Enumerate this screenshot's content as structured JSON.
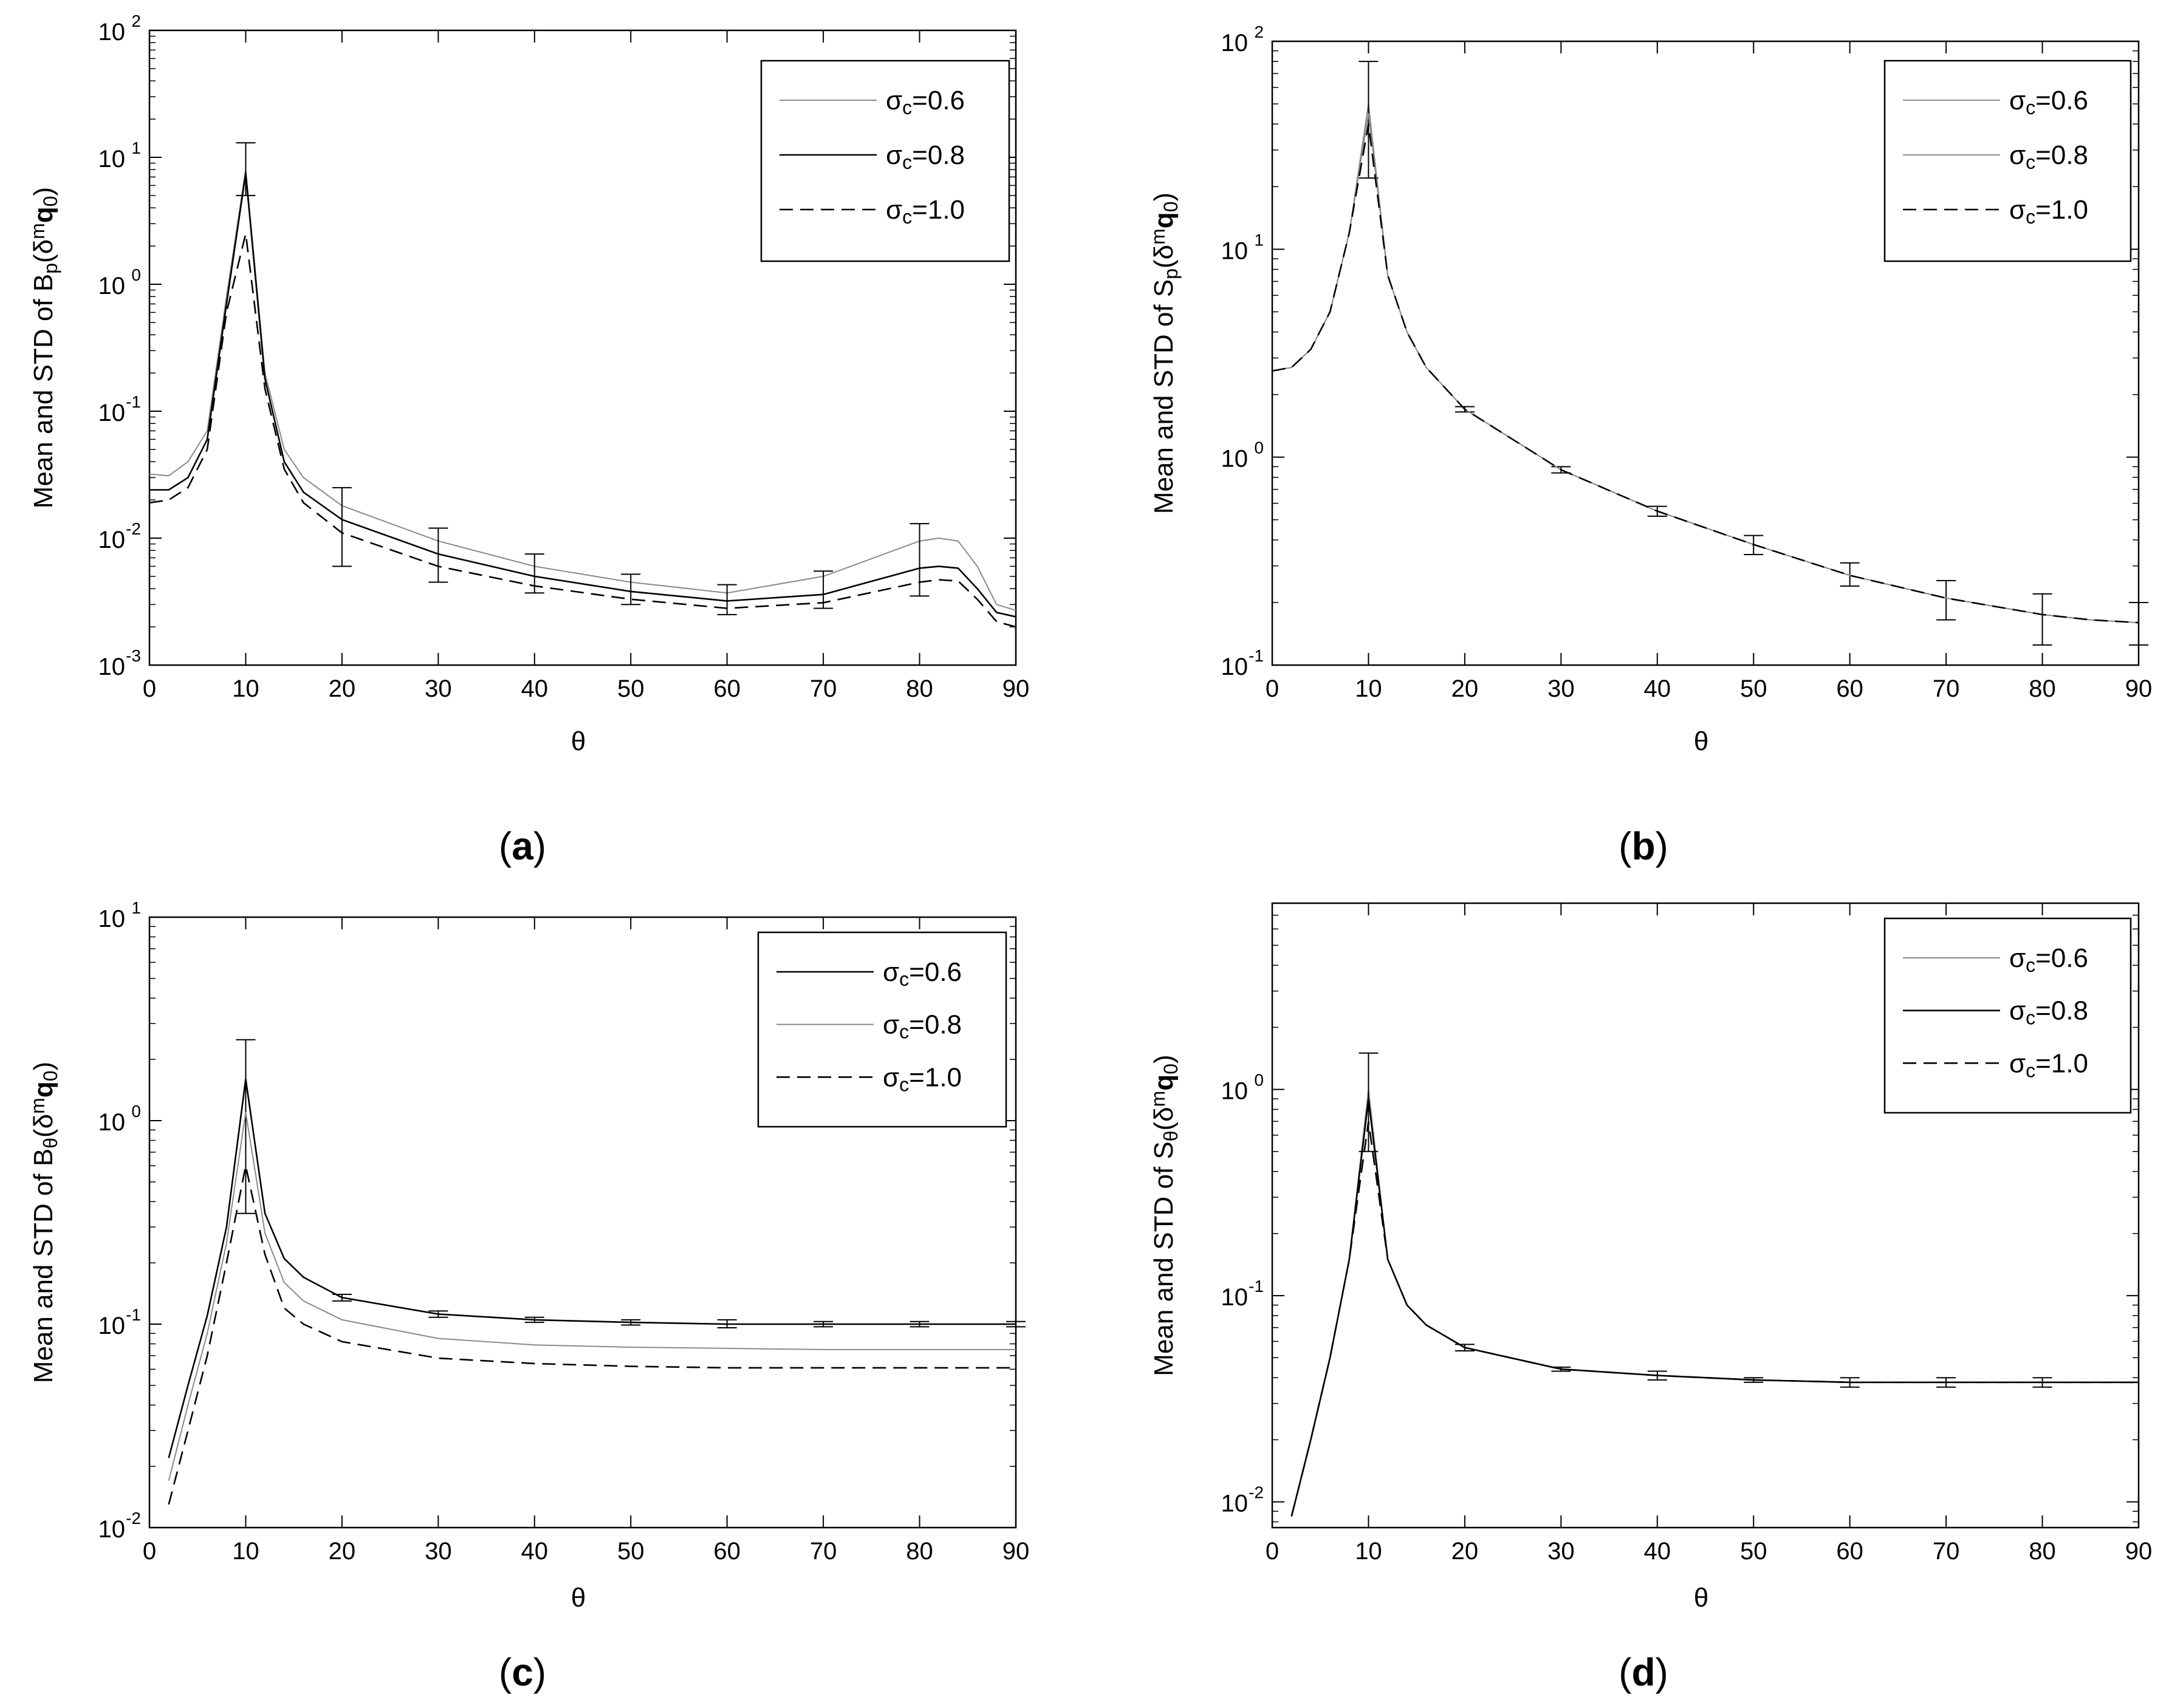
{
  "figure": {
    "captions": [
      "(a)",
      "(b)",
      "(c)",
      "(d)"
    ],
    "caption_letters": [
      "a",
      "b",
      "c",
      "d"
    ],
    "xlabel": "θ"
  },
  "colors": {
    "axis": "#000000",
    "line": "#000000",
    "light": "#8a8a8a",
    "background": "#ffffff"
  },
  "chart_data": [
    {
      "type": "line",
      "panel": "a",
      "title": "",
      "xlabel": "θ",
      "ylabel": "Mean and STD of Bp(δmq0)",
      "ylabel_parts": {
        "pre": "Mean and STD of B",
        "sub": "p",
        "mid": "(δ",
        "sup": "m",
        "bold": "q",
        "sub2": "0",
        "post": ")"
      },
      "yscale": "log",
      "xlim": [
        0,
        90
      ],
      "ylim": [
        0.001,
        100
      ],
      "xticks": [
        0,
        10,
        20,
        30,
        40,
        50,
        60,
        70,
        80,
        90
      ],
      "yticks": [
        {
          "value": 0.001,
          "base": "10",
          "exp": "-3"
        },
        {
          "value": 0.01,
          "base": "10",
          "exp": "-2"
        },
        {
          "value": 0.1,
          "base": "10",
          "exp": "-1"
        },
        {
          "value": 1,
          "base": "10",
          "exp": "0"
        },
        {
          "value": 10,
          "base": "10",
          "exp": "1"
        },
        {
          "value": 100,
          "base": "10",
          "exp": "2"
        }
      ],
      "legend_position": "top-right",
      "series": [
        {
          "name": "σc=0.6",
          "label_main": "σ",
          "label_sub": "c",
          "label_val": "=0.6",
          "style": "solid",
          "weight": "thin",
          "x": [
            0,
            2,
            4,
            6,
            8,
            10,
            12,
            14,
            16,
            20,
            30,
            40,
            50,
            60,
            70,
            80,
            82,
            84,
            86,
            88,
            90
          ],
          "y": [
            0.032,
            0.031,
            0.04,
            0.07,
            0.8,
            8.0,
            0.2,
            0.05,
            0.03,
            0.018,
            0.0095,
            0.006,
            0.0045,
            0.0037,
            0.005,
            0.0095,
            0.01,
            0.0095,
            0.006,
            0.003,
            0.0027
          ],
          "error_x": [
            10,
            20,
            30,
            40,
            50,
            60,
            70,
            80
          ],
          "error_low": [
            5.0,
            0.006,
            0.0045,
            0.0037,
            0.003,
            0.0025,
            0.0028,
            0.0035
          ],
          "error_high": [
            13,
            0.025,
            0.012,
            0.0075,
            0.0052,
            0.0043,
            0.0055,
            0.013
          ]
        },
        {
          "name": "σc=0.8",
          "label_main": "σ",
          "label_sub": "c",
          "label_val": "=0.8",
          "style": "solid",
          "weight": "normal",
          "x": [
            0,
            2,
            4,
            6,
            8,
            10,
            12,
            14,
            16,
            20,
            30,
            40,
            50,
            60,
            70,
            80,
            82,
            84,
            86,
            88,
            90
          ],
          "y": [
            0.024,
            0.024,
            0.03,
            0.06,
            0.7,
            7.5,
            0.18,
            0.04,
            0.023,
            0.014,
            0.0075,
            0.005,
            0.0038,
            0.0032,
            0.0036,
            0.0058,
            0.006,
            0.0058,
            0.004,
            0.0026,
            0.0024
          ]
        },
        {
          "name": "σc=1.0",
          "label_main": "σ",
          "label_sub": "c",
          "label_val": "=1.0",
          "style": "dashed",
          "weight": "normal",
          "x": [
            0,
            2,
            4,
            6,
            8,
            10,
            12,
            14,
            16,
            20,
            30,
            40,
            50,
            60,
            70,
            80,
            82,
            84,
            86,
            88,
            90
          ],
          "y": [
            0.019,
            0.02,
            0.025,
            0.05,
            0.6,
            2.5,
            0.15,
            0.035,
            0.019,
            0.011,
            0.006,
            0.0042,
            0.0033,
            0.0028,
            0.0031,
            0.0045,
            0.0047,
            0.0046,
            0.0033,
            0.0022,
            0.002
          ]
        }
      ]
    },
    {
      "type": "line",
      "panel": "b",
      "title": "",
      "xlabel": "θ",
      "ylabel": "Mean and STD of Sp(δmq0)",
      "ylabel_parts": {
        "pre": "Mean and STD of S",
        "sub": "p",
        "mid": "(δ",
        "sup": "m",
        "bold": "q",
        "sub2": "0",
        "post": ")"
      },
      "yscale": "log",
      "xlim": [
        0,
        90
      ],
      "ylim": [
        0.1,
        100
      ],
      "xticks": [
        0,
        10,
        20,
        30,
        40,
        50,
        60,
        70,
        80,
        90
      ],
      "yticks": [
        {
          "value": 0.1,
          "base": "10",
          "exp": "-1"
        },
        {
          "value": 1,
          "base": "10",
          "exp": "0"
        },
        {
          "value": 10,
          "base": "10",
          "exp": "1"
        },
        {
          "value": 100,
          "base": "10",
          "exp": "2"
        }
      ],
      "legend_position": "top-right",
      "series": [
        {
          "name": "σc=0.6",
          "label_main": "σ",
          "label_sub": "c",
          "label_val": "=0.6",
          "style": "solid",
          "weight": "thin",
          "x": [
            0,
            2,
            4,
            6,
            8,
            10,
            12,
            14,
            16,
            20,
            30,
            40,
            50,
            60,
            70,
            80,
            85,
            90
          ],
          "y": [
            2.6,
            2.7,
            3.3,
            5,
            12,
            50,
            7.5,
            4,
            2.7,
            1.7,
            0.87,
            0.55,
            0.38,
            0.27,
            0.21,
            0.175,
            0.165,
            0.16
          ],
          "error_x": [
            10,
            20,
            30,
            40,
            50,
            60,
            70,
            80,
            90
          ],
          "error_low": [
            22,
            1.65,
            0.84,
            0.52,
            0.34,
            0.24,
            0.165,
            0.125,
            0.125
          ],
          "error_high": [
            80,
            1.75,
            0.9,
            0.58,
            0.42,
            0.31,
            0.255,
            0.22,
            0.2
          ]
        },
        {
          "name": "σc=0.8",
          "label_main": "σ",
          "label_sub": "c",
          "label_val": "=0.8",
          "style": "solid",
          "weight": "thin",
          "x": [
            0,
            2,
            4,
            6,
            8,
            10,
            12,
            14,
            16,
            20,
            30,
            40,
            50,
            60,
            70,
            80,
            85,
            90
          ],
          "y": [
            2.6,
            2.7,
            3.3,
            5,
            12,
            45,
            7.5,
            4,
            2.7,
            1.7,
            0.87,
            0.55,
            0.38,
            0.27,
            0.21,
            0.175,
            0.165,
            0.16
          ]
        },
        {
          "name": "σc=1.0",
          "label_main": "σ",
          "label_sub": "c",
          "label_val": "=1.0",
          "style": "dashed",
          "weight": "normal",
          "x": [
            0,
            2,
            4,
            6,
            8,
            10,
            12,
            14,
            16,
            20,
            30,
            40,
            50,
            60,
            70,
            80,
            85,
            90
          ],
          "y": [
            2.6,
            2.7,
            3.3,
            5,
            12,
            40,
            7.5,
            4,
            2.7,
            1.7,
            0.87,
            0.55,
            0.38,
            0.27,
            0.21,
            0.175,
            0.165,
            0.16
          ]
        }
      ]
    },
    {
      "type": "line",
      "panel": "c",
      "title": "",
      "xlabel": "θ",
      "ylabel": "Mean and STD of Bθ(δmq0)",
      "ylabel_parts": {
        "pre": "Mean and STD of B",
        "sub": "θ",
        "mid": "(δ",
        "sup": "m",
        "bold": "q",
        "sub2": "0",
        "post": ")"
      },
      "yscale": "log",
      "xlim": [
        0,
        90
      ],
      "ylim": [
        0.01,
        10
      ],
      "xticks": [
        0,
        10,
        20,
        30,
        40,
        50,
        60,
        70,
        80,
        90
      ],
      "yticks": [
        {
          "value": 0.01,
          "base": "10",
          "exp": "-2"
        },
        {
          "value": 0.1,
          "base": "10",
          "exp": "-1"
        },
        {
          "value": 1,
          "base": "10",
          "exp": "0"
        },
        {
          "value": 10,
          "base": "10",
          "exp": "1"
        }
      ],
      "legend_position": "top-right",
      "series": [
        {
          "name": "σc=0.6",
          "label_main": "σ",
          "label_sub": "c",
          "label_val": "=0.6",
          "style": "solid",
          "weight": "normal",
          "x": [
            2,
            4,
            6,
            8,
            10,
            12,
            14,
            16,
            20,
            30,
            40,
            50,
            60,
            70,
            80,
            90
          ],
          "y": [
            0.022,
            0.05,
            0.11,
            0.3,
            1.6,
            0.35,
            0.21,
            0.17,
            0.135,
            0.112,
            0.105,
            0.102,
            0.1,
            0.1,
            0.1,
            0.1
          ],
          "error_x": [
            10,
            20,
            30,
            40,
            50,
            60,
            70,
            80,
            90
          ],
          "error_low": [
            0.35,
            0.13,
            0.108,
            0.102,
            0.099,
            0.096,
            0.097,
            0.097,
            0.097
          ],
          "error_high": [
            2.5,
            0.14,
            0.116,
            0.108,
            0.105,
            0.105,
            0.103,
            0.103,
            0.103
          ]
        },
        {
          "name": "σc=0.8",
          "label_main": "σ",
          "label_sub": "c",
          "label_val": "=0.8",
          "style": "solid",
          "weight": "thin",
          "x": [
            2,
            4,
            6,
            8,
            10,
            12,
            14,
            16,
            20,
            30,
            40,
            50,
            60,
            70,
            80,
            90
          ],
          "y": [
            0.017,
            0.04,
            0.09,
            0.25,
            1.1,
            0.28,
            0.16,
            0.13,
            0.105,
            0.085,
            0.079,
            0.077,
            0.076,
            0.075,
            0.075,
            0.075
          ]
        },
        {
          "name": "σc=1.0",
          "label_main": "σ",
          "label_sub": "c",
          "label_val": "=1.0",
          "style": "dashed",
          "weight": "normal",
          "x": [
            2,
            4,
            6,
            8,
            10,
            12,
            14,
            16,
            20,
            30,
            40,
            50,
            60,
            70,
            80,
            90
          ],
          "y": [
            0.013,
            0.03,
            0.07,
            0.2,
            0.6,
            0.22,
            0.12,
            0.1,
            0.082,
            0.068,
            0.064,
            0.062,
            0.061,
            0.061,
            0.061,
            0.061
          ]
        }
      ]
    },
    {
      "type": "line",
      "panel": "d",
      "title": "",
      "xlabel": "θ",
      "ylabel": "Mean and STD of Sθ(δmq0)",
      "ylabel_parts": {
        "pre": "Mean and STD of S",
        "sub": "θ",
        "mid": "(δ",
        "sup": "m",
        "bold": "q",
        "sub2": "0",
        "post": ")"
      },
      "yscale": "log",
      "xlim": [
        0,
        90
      ],
      "ylim": [
        0.0075,
        8
      ],
      "xticks": [
        0,
        10,
        20,
        30,
        40,
        50,
        60,
        70,
        80,
        90
      ],
      "yticks": [
        {
          "value": 0.01,
          "base": "10",
          "exp": "-2"
        },
        {
          "value": 0.1,
          "base": "10",
          "exp": "-1"
        },
        {
          "value": 1,
          "base": "10",
          "exp": "0"
        }
      ],
      "legend_position": "top-right",
      "series": [
        {
          "name": "σc=0.6",
          "label_main": "σ",
          "label_sub": "c",
          "label_val": "=0.6",
          "style": "solid",
          "weight": "thin",
          "x": [
            2,
            4,
            6,
            8,
            10,
            12,
            14,
            16,
            20,
            30,
            40,
            50,
            60,
            70,
            80,
            90
          ],
          "y": [
            0.0085,
            0.02,
            0.05,
            0.15,
            1.0,
            0.15,
            0.09,
            0.072,
            0.056,
            0.044,
            0.041,
            0.039,
            0.038,
            0.038,
            0.038,
            0.038
          ],
          "error_x": [
            10,
            20,
            30,
            40,
            50,
            60,
            70,
            80
          ],
          "error_low": [
            0.5,
            0.054,
            0.043,
            0.039,
            0.038,
            0.036,
            0.036,
            0.036
          ],
          "error_high": [
            1.5,
            0.058,
            0.045,
            0.043,
            0.04,
            0.04,
            0.04,
            0.04
          ]
        },
        {
          "name": "σc=0.8",
          "label_main": "σ",
          "label_sub": "c",
          "label_val": "=0.8",
          "style": "solid",
          "weight": "normal",
          "x": [
            2,
            4,
            6,
            8,
            10,
            12,
            14,
            16,
            20,
            30,
            40,
            50,
            60,
            70,
            80,
            90
          ],
          "y": [
            0.0085,
            0.02,
            0.05,
            0.15,
            0.9,
            0.15,
            0.09,
            0.072,
            0.056,
            0.044,
            0.041,
            0.039,
            0.038,
            0.038,
            0.038,
            0.038
          ]
        },
        {
          "name": "σc=1.0",
          "label_main": "σ",
          "label_sub": "c",
          "label_val": "=1.0",
          "style": "dashed",
          "weight": "normal",
          "x": [
            2,
            4,
            6,
            8,
            10,
            12,
            14,
            16,
            20,
            30,
            40,
            50,
            60,
            70,
            80,
            90
          ],
          "y": [
            0.0085,
            0.02,
            0.05,
            0.15,
            0.7,
            0.15,
            0.09,
            0.072,
            0.056,
            0.044,
            0.041,
            0.039,
            0.038,
            0.038,
            0.038,
            0.038
          ]
        }
      ]
    }
  ]
}
